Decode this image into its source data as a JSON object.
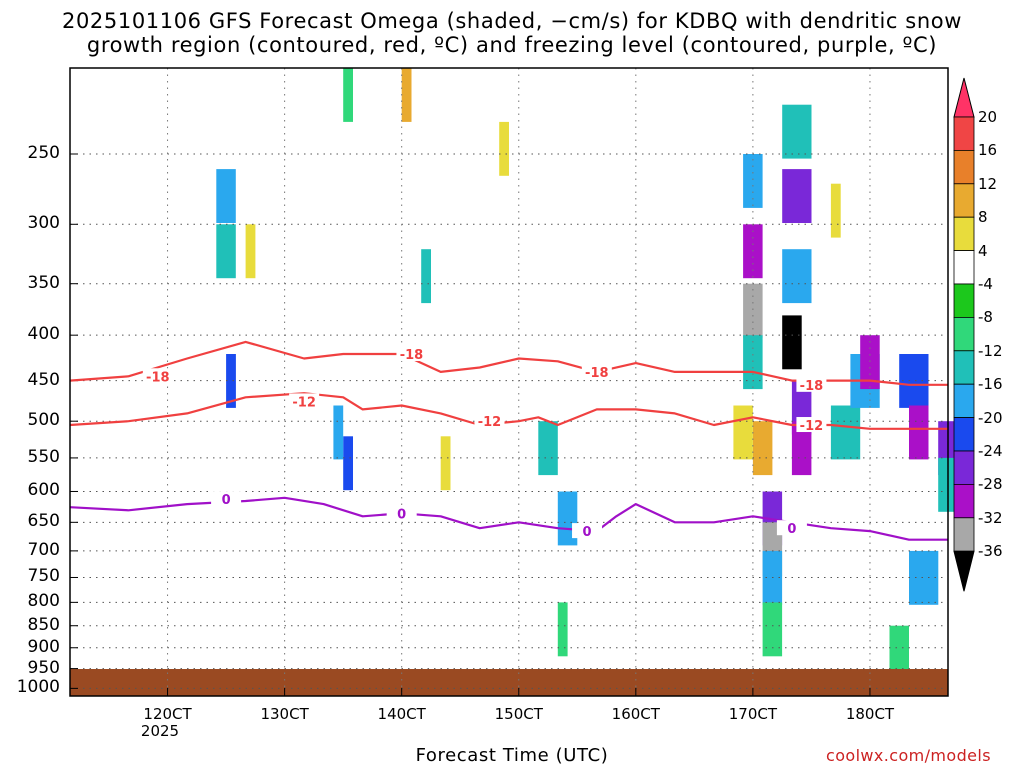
{
  "title_line1": "2025101106 GFS Forecast Omega (shaded, −cm/s) for KDBQ with dendritic snow",
  "title_line2": "growth region (contoured, red, ºC) and freezing level (contoured, purple, ºC)",
  "xaxis_title": "Forecast Time (UTC)",
  "credit": "coolwx.com/models",
  "year_label": "2025",
  "chart_data": {
    "type": "heatmap",
    "title": "2025101106 GFS Forecast Omega (shaded, −cm/s) for KDBQ with dendritic snow growth region (contoured, red, ºC) and freezing level (contoured, purple, ºC)",
    "xlabel": "Forecast Time (UTC)",
    "ylabel": "",
    "x_ticks": [
      "120CT",
      "130CT",
      "140CT",
      "150CT",
      "160CT",
      "170CT",
      "180CT"
    ],
    "x_tick_hours": [
      12,
      24,
      36,
      48,
      60,
      72,
      84
    ],
    "xlim_hours": [
      2,
      92
    ],
    "y_ticks": [
      250,
      300,
      350,
      400,
      450,
      500,
      550,
      600,
      650,
      700,
      750,
      800,
      850,
      900,
      950,
      1000
    ],
    "ylim": [
      200,
      1020
    ],
    "y_scale": "log-pressure (inverted)",
    "grid": true,
    "colorbar": {
      "labels": [
        20,
        16,
        12,
        8,
        4,
        -4,
        -8,
        -12,
        -16,
        -20,
        -24,
        -28,
        -32,
        -36
      ],
      "colors": [
        "#ff3366",
        "#f04545",
        "#e8802a",
        "#e8aa30",
        "#e8dc3c",
        "#ffffff",
        "#1cc81c",
        "#30d87a",
        "#20c0b8",
        "#2aa8ee",
        "#1a4aee",
        "#7a28d8",
        "#aa10c8",
        "#a8a8a8",
        "#000000"
      ]
    },
    "contours": [
      {
        "name": "-18",
        "color": "#f04040",
        "x": [
          2,
          8,
          14,
          20,
          26,
          30,
          36,
          40,
          44,
          48,
          52,
          56,
          60,
          64,
          68,
          72,
          76,
          80,
          84,
          88,
          92
        ],
        "y": [
          450,
          445,
          425,
          407,
          425,
          420,
          420,
          440,
          435,
          425,
          428,
          440,
          430,
          440,
          440,
          440,
          450,
          450,
          450,
          455,
          455
        ]
      },
      {
        "name": "-12",
        "color": "#f04040",
        "x": [
          2,
          8,
          14,
          20,
          26,
          30,
          32,
          36,
          40,
          44,
          48,
          50,
          52,
          56,
          60,
          64,
          68,
          72,
          76,
          80,
          84,
          88,
          92
        ],
        "y": [
          505,
          500,
          490,
          470,
          465,
          470,
          485,
          480,
          490,
          505,
          500,
          495,
          505,
          485,
          485,
          490,
          505,
          495,
          505,
          505,
          510,
          510,
          510
        ]
      },
      {
        "name": "0",
        "color": "#a010c8",
        "x": [
          2,
          8,
          14,
          20,
          24,
          28,
          32,
          36,
          40,
          44,
          48,
          52,
          56,
          58,
          60,
          64,
          68,
          72,
          76,
          80,
          84,
          88,
          92
        ],
        "y": [
          625,
          630,
          620,
          615,
          610,
          620,
          640,
          635,
          640,
          660,
          650,
          660,
          665,
          640,
          620,
          650,
          650,
          640,
          650,
          660,
          665,
          680,
          680
        ]
      }
    ],
    "contour_labels": [
      {
        "text": "-18",
        "x": 11,
        "y": 445
      },
      {
        "text": "-18",
        "x": 37,
        "y": 420
      },
      {
        "text": "-18",
        "x": 56,
        "y": 440
      },
      {
        "text": "-18",
        "x": 78,
        "y": 455
      },
      {
        "text": "-12",
        "x": 26,
        "y": 475
      },
      {
        "text": "-12",
        "x": 45,
        "y": 500
      },
      {
        "text": "-12",
        "x": 78,
        "y": 505
      },
      {
        "text": "0",
        "x": 18,
        "y": 612
      },
      {
        "text": "0",
        "x": 36,
        "y": 635
      },
      {
        "text": "0",
        "x": 55,
        "y": 665
      },
      {
        "text": "0",
        "x": 76,
        "y": 660
      }
    ],
    "cells": [
      {
        "x": 36,
        "p": 200,
        "w": 1,
        "v": 12
      },
      {
        "x": 17,
        "p": 260,
        "w": 2,
        "v": -16
      },
      {
        "x": 17,
        "p": 300,
        "w": 2,
        "v": -12
      },
      {
        "x": 38,
        "p": 320,
        "w": 1,
        "v": -12
      },
      {
        "x": 71,
        "p": 250,
        "w": 2,
        "v": -16
      },
      {
        "x": 71,
        "p": 300,
        "w": 2,
        "v": -28
      },
      {
        "x": 71,
        "p": 350,
        "w": 2,
        "v": -32
      },
      {
        "x": 71,
        "p": 400,
        "w": 2,
        "v": -12
      },
      {
        "x": 75,
        "p": 220,
        "w": 3,
        "v": -12
      },
      {
        "x": 75,
        "p": 260,
        "w": 3,
        "v": -24
      },
      {
        "x": 75,
        "p": 320,
        "w": 3,
        "v": -16
      },
      {
        "x": 75,
        "p": 380,
        "w": 2,
        "v": -36
      },
      {
        "x": 76,
        "p": 450,
        "w": 2,
        "v": -24
      },
      {
        "x": 76,
        "p": 500,
        "w": 2,
        "v": -28
      },
      {
        "x": 73,
        "p": 600,
        "w": 2,
        "v": -24
      },
      {
        "x": 73,
        "p": 650,
        "w": 2,
        "v": -32
      },
      {
        "x": 73,
        "p": 700,
        "w": 2,
        "v": -16
      },
      {
        "x": 73,
        "p": 800,
        "w": 2,
        "v": -8
      },
      {
        "x": 80,
        "p": 480,
        "w": 3,
        "v": -12
      },
      {
        "x": 82,
        "p": 420,
        "w": 3,
        "v": -16
      },
      {
        "x": 83,
        "p": 400,
        "w": 2,
        "v": -28
      },
      {
        "x": 87,
        "p": 420,
        "w": 3,
        "v": -20
      },
      {
        "x": 88,
        "p": 480,
        "w": 2,
        "v": -28
      },
      {
        "x": 91,
        "p": 500,
        "w": 2,
        "v": -24
      },
      {
        "x": 91,
        "p": 550,
        "w": 2,
        "v": -12
      },
      {
        "x": 88,
        "p": 700,
        "w": 3,
        "v": -16
      },
      {
        "x": 86,
        "p": 850,
        "w": 2,
        "v": -8
      },
      {
        "x": 72,
        "p": 500,
        "w": 2,
        "v": 12
      },
      {
        "x": 70,
        "p": 480,
        "w": 2,
        "v": 8
      },
      {
        "x": 80,
        "p": 270,
        "w": 1,
        "v": 8
      },
      {
        "x": 50,
        "p": 500,
        "w": 2,
        "v": -12
      },
      {
        "x": 52,
        "p": 600,
        "w": 2,
        "v": -16
      },
      {
        "x": 52,
        "p": 800,
        "w": 1,
        "v": -8
      },
      {
        "x": 30,
        "p": 520,
        "w": 1,
        "v": -20
      },
      {
        "x": 29,
        "p": 480,
        "w": 1,
        "v": -16
      },
      {
        "x": 18,
        "p": 420,
        "w": 1,
        "v": -20
      },
      {
        "x": 20,
        "p": 300,
        "w": 1,
        "v": 8
      },
      {
        "x": 26,
        "p": 200,
        "w": 1,
        "v": 4
      },
      {
        "x": 30,
        "p": 200,
        "w": 1,
        "v": -8
      },
      {
        "x": 58,
        "p": 230,
        "w": 1,
        "v": 4
      },
      {
        "x": 44,
        "p": 230,
        "w": 2,
        "v": 4
      },
      {
        "x": 46,
        "p": 230,
        "w": 1,
        "v": 8
      },
      {
        "x": 8,
        "p": 320,
        "w": 1,
        "v": 4
      },
      {
        "x": 14,
        "p": 300,
        "w": 1,
        "v": 4
      },
      {
        "x": 36,
        "p": 520,
        "w": 2,
        "v": 4
      },
      {
        "x": 40,
        "p": 520,
        "w": 1,
        "v": 8
      },
      {
        "x": 58,
        "p": 400,
        "w": 1,
        "v": 4
      },
      {
        "x": 60,
        "p": 700,
        "w": 1,
        "v": 4
      },
      {
        "x": 84,
        "p": 800,
        "w": 1,
        "v": 4
      }
    ]
  }
}
